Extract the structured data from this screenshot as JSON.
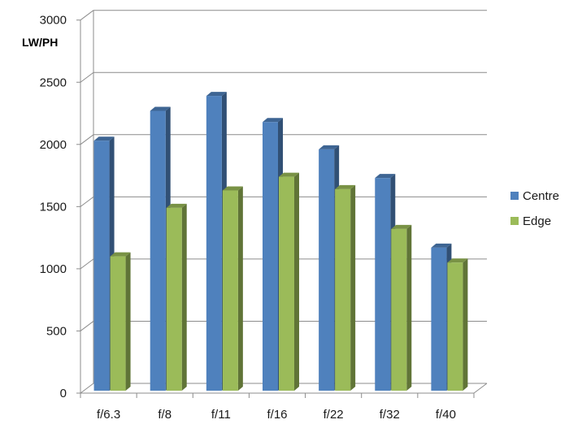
{
  "chart_data": {
    "type": "bar",
    "title": "",
    "xlabel": "",
    "ylabel": "LW/PH",
    "categories": [
      "f/6.3",
      "f/8",
      "f/11",
      "f/16",
      "f/22",
      "f/32",
      "f/40"
    ],
    "series": [
      {
        "name": "Centre",
        "color": "#4F81BD",
        "values": [
          2030,
          2270,
          2390,
          2180,
          1960,
          1730,
          1170
        ]
      },
      {
        "name": "Edge",
        "color": "#9BBB59",
        "values": [
          1100,
          1490,
          1630,
          1740,
          1640,
          1320,
          1050
        ]
      }
    ],
    "ylim": [
      0,
      3000
    ],
    "yticks": [
      0,
      500,
      1000,
      1500,
      2000,
      2500,
      3000
    ],
    "grid": true,
    "legend": "right",
    "style": "3d-clustered-column"
  }
}
